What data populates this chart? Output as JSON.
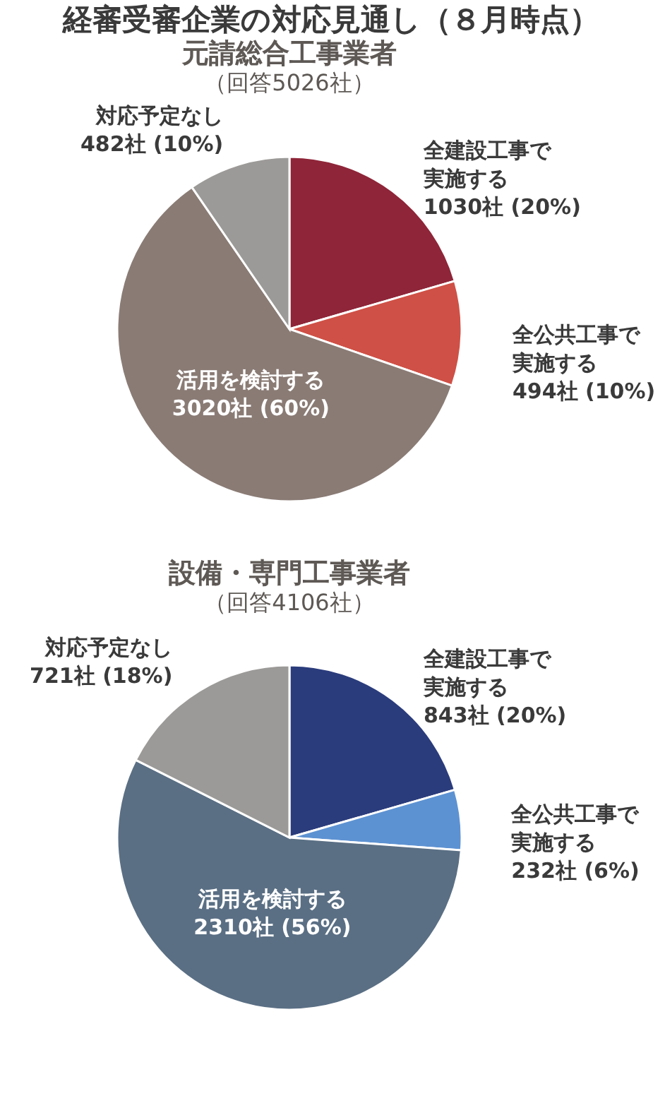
{
  "chart_data": [
    {
      "type": "pie",
      "title": "元請総合工事業者",
      "subtitle": "（回答5026社）",
      "annotations": [
        "経審受審企業の対応見通し（８月時点）"
      ],
      "categories": [
        "全建設工事で実施する",
        "全公共工事で実施する",
        "活用を検討する",
        "対応予定なし"
      ],
      "values": [
        1030,
        494,
        3020,
        482
      ],
      "value_labels": [
        "1030社 (20%)",
        "494社 (10%)",
        "3020社 (60%)",
        "482社 (10%)"
      ],
      "colors": [
        "#8e2538",
        "#cf5046",
        "#8a7b75",
        "#9c9a98"
      ]
    },
    {
      "type": "pie",
      "title": "設備・専門工事業者",
      "subtitle": "（回答4106社）",
      "categories": [
        "全建設工事で実施する",
        "全公共工事で実施する",
        "活用を検討する",
        "対応予定なし"
      ],
      "values": [
        843,
        232,
        2310,
        721
      ],
      "value_labels": [
        "843社 (20%)",
        "232社 (6%)",
        "2310社 (56%)",
        "721社 (18%)"
      ],
      "colors": [
        "#2b3c7c",
        "#5d92d2",
        "#5a6f84",
        "#9c9a98"
      ]
    }
  ]
}
